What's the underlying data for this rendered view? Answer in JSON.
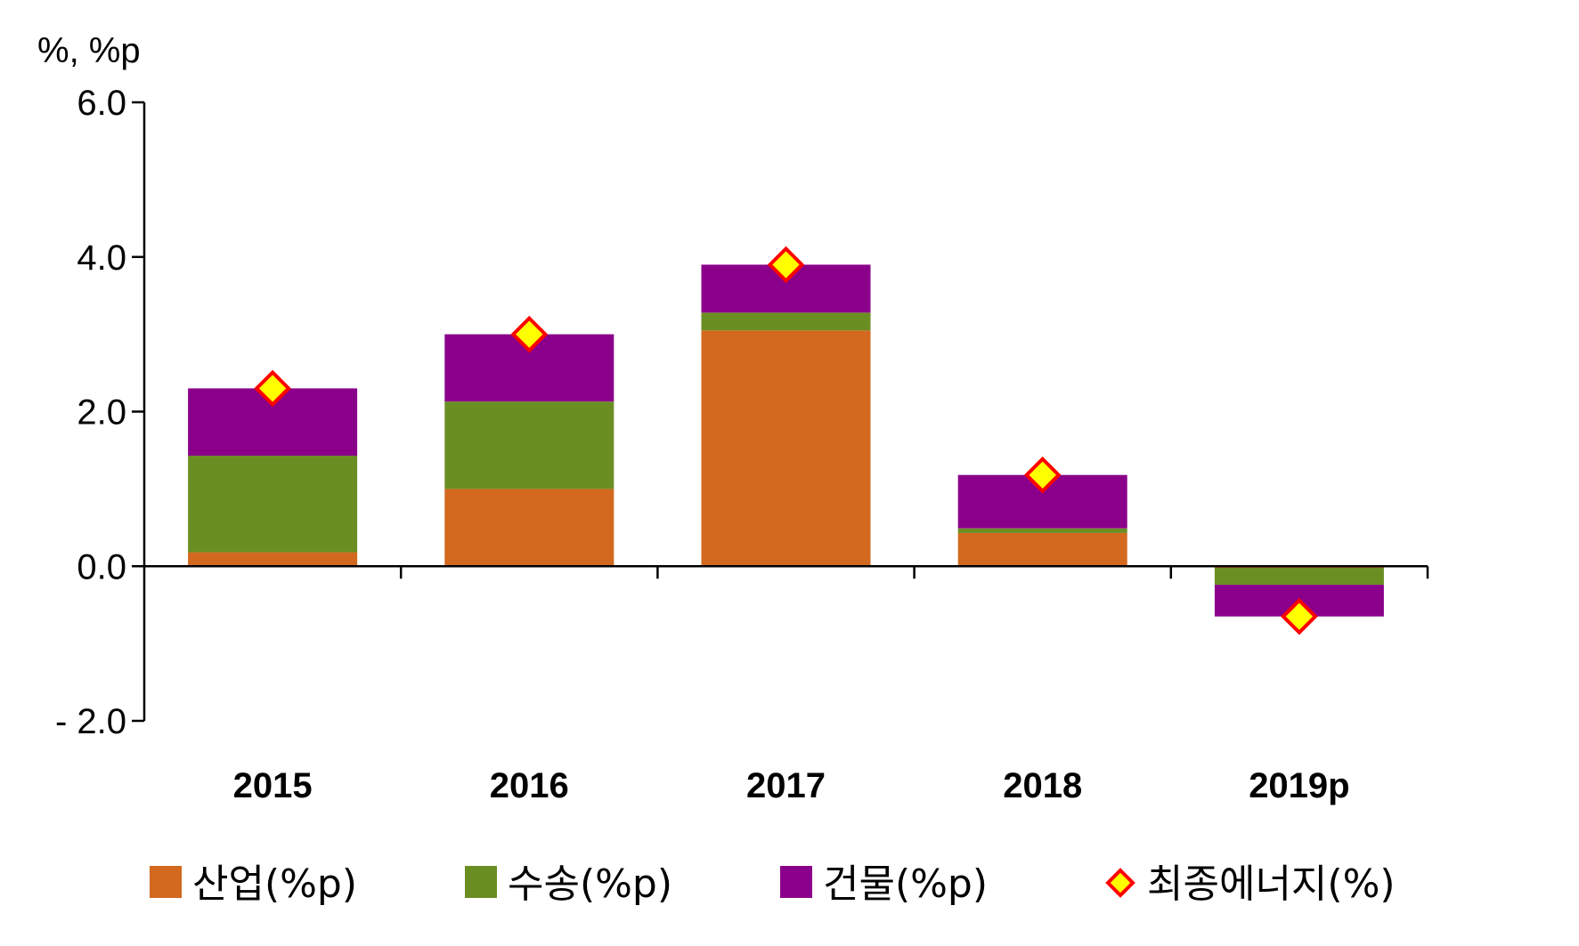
{
  "chart_data": {
    "type": "bar",
    "stacked": true,
    "unit_label": "%, %p",
    "categories": [
      "2015",
      "2016",
      "2017",
      "2018",
      "2019p"
    ],
    "ylim": [
      -2.0,
      6.0
    ],
    "yticks": [
      6.0,
      4.0,
      2.0,
      0.0,
      -2.0
    ],
    "ytick_labels": [
      "6.0",
      "4.0",
      "2.0",
      "0.0",
      "- 2.0"
    ],
    "series": [
      {
        "name": "산업(%p)",
        "type": "bar",
        "color": "#D2691E",
        "values": [
          0.18,
          1.0,
          3.05,
          0.43,
          -0.02
        ]
      },
      {
        "name": "수송(%p)",
        "type": "bar",
        "color": "#6B8E23",
        "values": [
          1.25,
          1.13,
          0.23,
          0.06,
          -0.22
        ]
      },
      {
        "name": "건물(%p)",
        "type": "bar",
        "color": "#8B008B",
        "values": [
          0.87,
          0.87,
          0.62,
          0.69,
          -0.41
        ]
      },
      {
        "name": "최종에너지(%)",
        "type": "marker",
        "marker": "diamond",
        "color": "#FFFF00",
        "edge_color": "#FF0000",
        "values": [
          2.3,
          3.0,
          3.9,
          1.18,
          -0.65
        ]
      }
    ],
    "grid": false,
    "legend_position": "bottom"
  }
}
